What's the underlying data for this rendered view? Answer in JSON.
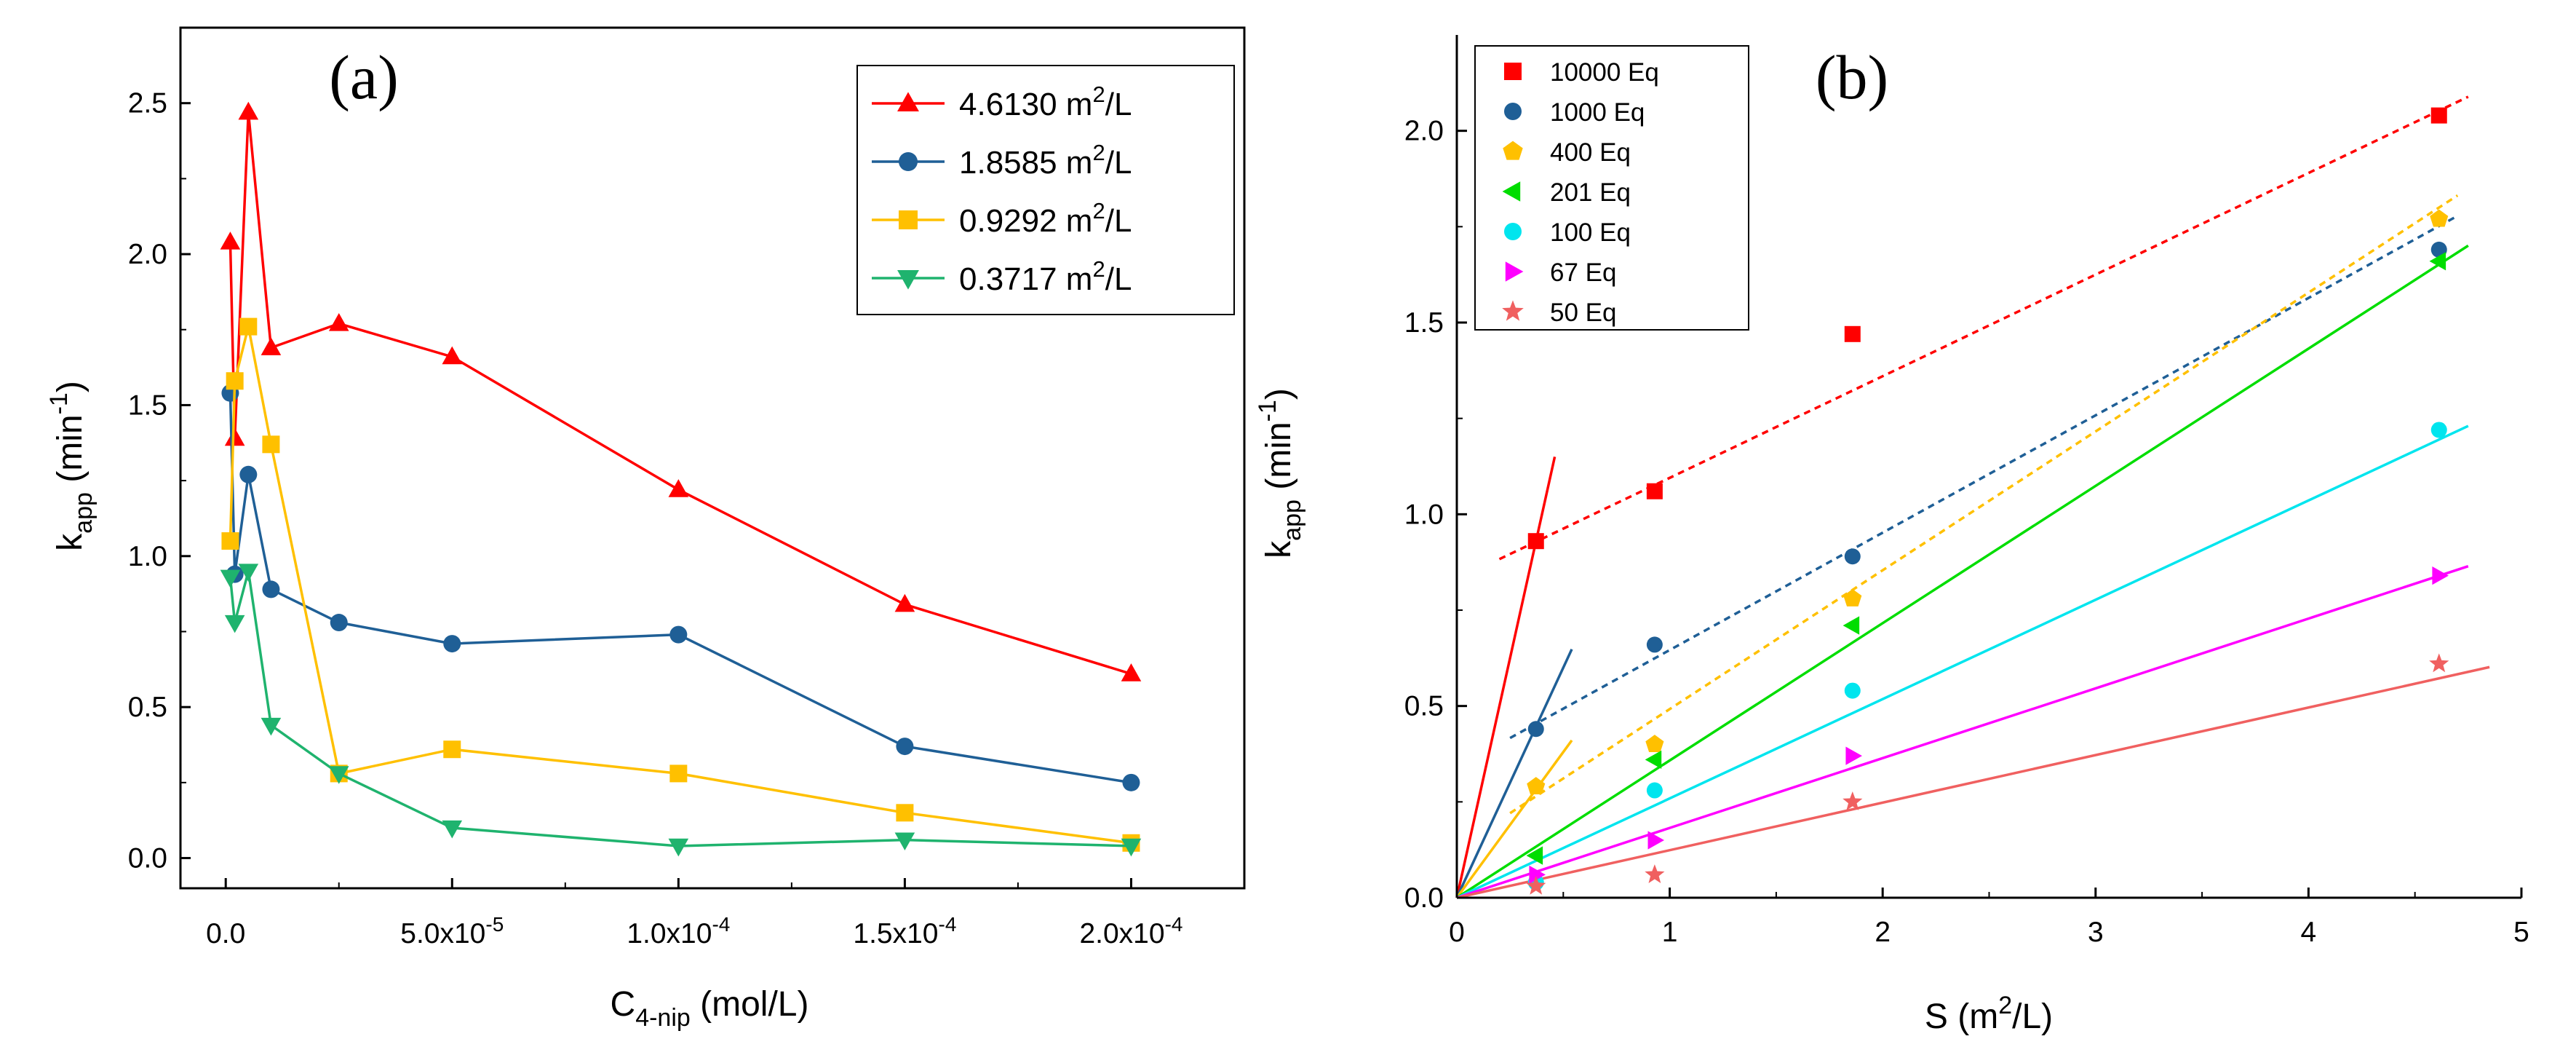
{
  "chart_data": [
    {
      "type": "line",
      "panel_label": "(a)",
      "xlabel": "C",
      "xlabel_sub": "4-nip",
      "xlabel_unit": " (mol/L)",
      "ylabel": "k",
      "ylabel_sub": "app",
      "ylabel_unit_pre": " (min",
      "ylabel_unit_sup": "-1",
      "ylabel_unit_post": ")",
      "xlim": [
        -1e-05,
        0.000225
      ],
      "ylim": [
        -0.1,
        2.75
      ],
      "xticks": [
        {
          "value": 0,
          "mant": "0.0",
          "exp": ""
        },
        {
          "value": 5e-05,
          "mant": "5.0x10",
          "exp": "-5"
        },
        {
          "value": 0.0001,
          "mant": "1.0x10",
          "exp": "-4"
        },
        {
          "value": 0.00015,
          "mant": "1.5x10",
          "exp": "-4"
        },
        {
          "value": 0.0002,
          "mant": "2.0x10",
          "exp": "-4"
        }
      ],
      "yticks": [
        {
          "value": 0,
          "label": "0.0"
        },
        {
          "value": 0.5,
          "label": "0.5"
        },
        {
          "value": 1.0,
          "label": "1.0"
        },
        {
          "value": 1.5,
          "label": "1.5"
        },
        {
          "value": 2.0,
          "label": "2.0"
        },
        {
          "value": 2.5,
          "label": "2.5"
        }
      ],
      "legend_position": "top-right",
      "series": [
        {
          "name": "4.6130 m",
          "sup": "2",
          "unit": "/L",
          "color": "#ff0000",
          "marker": "triangle-up",
          "x": [
            1e-06,
            2e-06,
            5e-06,
            1e-05,
            2.5e-05,
            5e-05,
            0.0001,
            0.00015,
            0.0002
          ],
          "y": [
            2.04,
            1.39,
            2.47,
            1.69,
            1.77,
            1.66,
            1.22,
            0.84,
            0.61
          ]
        },
        {
          "name": "1.8585 m",
          "sup": "2",
          "unit": "/L",
          "color": "#1f5f96",
          "marker": "circle",
          "x": [
            1e-06,
            2e-06,
            5e-06,
            1e-05,
            2.5e-05,
            5e-05,
            0.0001,
            0.00015,
            0.0002
          ],
          "y": [
            1.54,
            0.94,
            1.27,
            0.89,
            0.78,
            0.71,
            0.74,
            0.37,
            0.25
          ]
        },
        {
          "name": "0.9292 m",
          "sup": "2",
          "unit": "/L",
          "color": "#ffc000",
          "marker": "square",
          "x": [
            1e-06,
            2e-06,
            5e-06,
            1e-05,
            2.5e-05,
            5e-05,
            0.0001,
            0.00015,
            0.0002
          ],
          "y": [
            1.05,
            1.58,
            1.76,
            1.37,
            0.28,
            0.36,
            0.28,
            0.15,
            0.05
          ]
        },
        {
          "name": "0.3717 m",
          "sup": "2",
          "unit": "/L",
          "color": "#1fb36e",
          "marker": "triangle-down",
          "x": [
            1e-06,
            2e-06,
            5e-06,
            1e-05,
            2.5e-05,
            5e-05,
            0.0001,
            0.00015,
            0.0002
          ],
          "y": [
            0.93,
            0.78,
            0.95,
            0.44,
            0.28,
            0.1,
            0.04,
            0.06,
            0.04
          ]
        }
      ]
    },
    {
      "type": "scatter",
      "panel_label": "(b)",
      "xlabel": "S (m",
      "xlabel_sup": "2",
      "xlabel_post": "/L)",
      "ylabel": "k",
      "ylabel_sub": "app",
      "ylabel_unit_pre": " (min",
      "ylabel_unit_sup": "-1",
      "ylabel_unit_post": ")",
      "xlim": [
        0,
        5
      ],
      "ylim": [
        0,
        2.25
      ],
      "xticks": [
        {
          "value": 0,
          "label": "0"
        },
        {
          "value": 1,
          "label": "1"
        },
        {
          "value": 2,
          "label": "2"
        },
        {
          "value": 3,
          "label": "3"
        },
        {
          "value": 4,
          "label": "4"
        },
        {
          "value": 5,
          "label": "5"
        }
      ],
      "yticks": [
        {
          "value": 0,
          "label": "0.0"
        },
        {
          "value": 0.5,
          "label": "0.5"
        },
        {
          "value": 1.0,
          "label": "1.0"
        },
        {
          "value": 1.5,
          "label": "1.5"
        },
        {
          "value": 2.0,
          "label": "2.0"
        }
      ],
      "legend_position": "top-left",
      "series": [
        {
          "name": "10000 Eq",
          "color": "#ff0000",
          "marker": "square",
          "x": [
            0.3717,
            0.9292,
            1.8585,
            4.613
          ],
          "y": [
            0.93,
            1.06,
            1.47,
            2.04
          ],
          "fit": {
            "slope": 0.265,
            "intercept": 0.83,
            "x_range": [
              0.2,
              4.75
            ],
            "style": "dashed"
          },
          "initial_fit": {
            "slope": 2.5,
            "x_range": [
              0,
              0.46
            ]
          }
        },
        {
          "name": "1000 Eq",
          "color": "#1f5f96",
          "marker": "circle",
          "x": [
            0.3717,
            0.9292,
            1.8585,
            4.613
          ],
          "y": [
            0.44,
            0.66,
            0.89,
            1.69
          ],
          "fit": {
            "slope": 0.306,
            "intercept": 0.34,
            "x_range": [
              0.25,
              4.7
            ],
            "style": "dashed"
          },
          "initial_fit": {
            "slope": 1.2,
            "x_range": [
              0,
              0.54
            ]
          }
        },
        {
          "name": "400 Eq",
          "color": "#ffc000",
          "marker": "pentagon",
          "x": [
            0.3717,
            0.9292,
            1.8585,
            4.613
          ],
          "y": [
            0.29,
            0.4,
            0.78,
            1.77
          ],
          "fit": {
            "slope": 0.362,
            "intercept": 0.13,
            "x_range": [
              0.25,
              4.7
            ],
            "style": "dashed"
          },
          "initial_fit": {
            "slope": 0.76,
            "x_range": [
              0,
              0.54
            ]
          }
        },
        {
          "name": "201 Eq",
          "color": "#00dd00",
          "marker": "triangle-left",
          "x": [
            0.3717,
            0.9292,
            1.8585,
            4.613
          ],
          "y": [
            0.11,
            0.36,
            0.71,
            1.66
          ],
          "fit": {
            "slope": 0.358,
            "intercept": 0,
            "x_range": [
              0,
              4.75
            ],
            "style": "solid"
          }
        },
        {
          "name": "100 Eq",
          "color": "#00e5ee",
          "marker": "circle",
          "x": [
            0.3717,
            0.9292,
            1.8585,
            4.613
          ],
          "y": [
            0.04,
            0.28,
            0.54,
            1.22
          ],
          "fit": {
            "slope": 0.259,
            "intercept": 0,
            "x_range": [
              0,
              4.75
            ],
            "style": "solid"
          }
        },
        {
          "name": "67 Eq",
          "color": "#ff00ff",
          "marker": "triangle-right",
          "x": [
            0.3717,
            0.9292,
            1.8585,
            4.613
          ],
          "y": [
            0.06,
            0.15,
            0.37,
            0.84
          ],
          "fit": {
            "slope": 0.182,
            "intercept": 0,
            "x_range": [
              0,
              4.75
            ],
            "style": "solid"
          }
        },
        {
          "name": "50 Eq",
          "color": "#f06060",
          "marker": "star",
          "x": [
            0.3717,
            0.9292,
            1.8585,
            4.613
          ],
          "y": [
            0.03,
            0.06,
            0.25,
            0.61
          ],
          "fit": {
            "slope": 0.124,
            "intercept": 0,
            "x_range": [
              0,
              4.85
            ],
            "style": "solid"
          }
        }
      ]
    }
  ]
}
